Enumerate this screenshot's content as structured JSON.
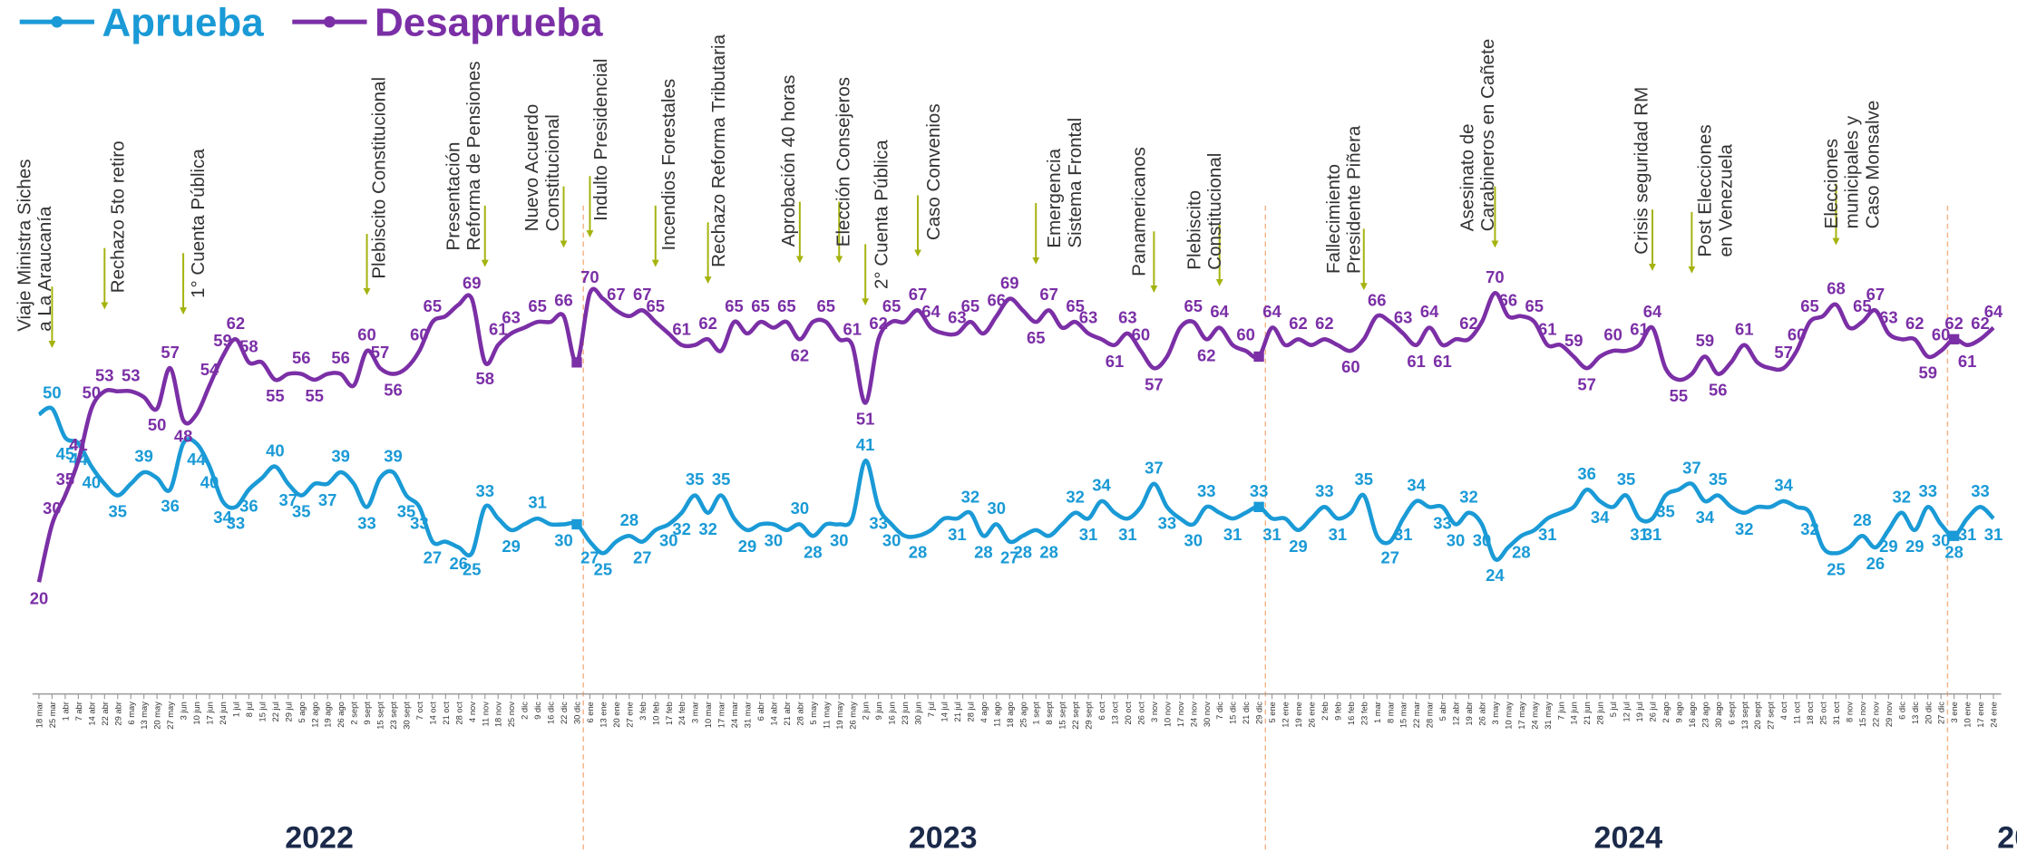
{
  "chart_data": {
    "type": "line",
    "categories": [
      "18 mar",
      "25 mar",
      "1 abr",
      "7 abr",
      "14 abr",
      "22 abr",
      "29 abr",
      "6 may",
      "13 may",
      "20 may",
      "27 may",
      "3 jun",
      "10 jun",
      "17 jun",
      "24 jun",
      "1 jul",
      "8 jul",
      "15 jul",
      "22 jul",
      "29 jul",
      "5 ago",
      "12 ago",
      "19 ago",
      "26 ago",
      "2 sept",
      "9 sept",
      "15 sept",
      "23 sept",
      "30 sept",
      "7 oct",
      "14 oct",
      "21 oct",
      "28 oct",
      "4 nov",
      "11 nov",
      "18 nov",
      "25 nov",
      "2 dic",
      "9 dic",
      "16 dic",
      "22 dic",
      "30 dic",
      "6 ene",
      "13 ene",
      "20 ene",
      "27 ene",
      "3 feb",
      "10 feb",
      "17 feb",
      "24 feb",
      "3 mar",
      "10 mar",
      "17 mar",
      "24 mar",
      "31 mar",
      "6 abr",
      "14 abr",
      "21 abr",
      "28 abr",
      "5 may",
      "11 may",
      "19 may",
      "26 may",
      "2 jun",
      "9 jun",
      "16 jun",
      "23 jun",
      "30 jun",
      "7 jul",
      "14 jul",
      "21 jul",
      "28 jul",
      "4 ago",
      "11 ago",
      "18 ago",
      "25 ago",
      "1 sept",
      "8 sept",
      "15 sept",
      "22 sept",
      "29 sept",
      "6 oct",
      "13 oct",
      "20 oct",
      "26 oct",
      "3 nov",
      "10 nov",
      "17 nov",
      "24 nov",
      "30 nov",
      "7 dic",
      "15 dic",
      "21 dic",
      "29 dic",
      "5 ene",
      "12 ene",
      "19 ene",
      "26 ene",
      "2 feb",
      "9 feb",
      "16 feb",
      "23 feb",
      "1 mar",
      "8 mar",
      "15 mar",
      "22 mar",
      "28 mar",
      "5 abr",
      "12 abr",
      "19 abr",
      "26 abr",
      "3 may",
      "10 may",
      "17 may",
      "24 may",
      "31 may",
      "7 jun",
      "14 jun",
      "21 jun",
      "28 jun",
      "5 jul",
      "12 jul",
      "19 jul",
      "26 jul",
      "2 ago",
      "9 ago",
      "16 ago",
      "23 ago",
      "30 ago",
      "6 sept",
      "13 sept",
      "20 sept",
      "27 sept",
      "4 oct",
      "11 oct",
      "18 oct",
      "25 oct",
      "31 oct",
      "8 nov",
      "15 nov",
      "22 nov",
      "29 nov",
      "6 dic",
      "13 dic",
      "20 dic",
      "27 dic",
      "3 ene",
      "10 ene",
      "17 ene",
      "24 ene"
    ],
    "series": [
      {
        "name": "Aprueba",
        "color": "#1a9ad6",
        "values": [
          49,
          50,
          45,
          44,
          40,
          37,
          35,
          37,
          39,
          38,
          36,
          44,
          44,
          40,
          34,
          33,
          36,
          38,
          40,
          37,
          35,
          37,
          37,
          39,
          37,
          33,
          38,
          39,
          35,
          33,
          27,
          27,
          26,
          25,
          33,
          31,
          29,
          30,
          31,
          30,
          30,
          30,
          27,
          25,
          27,
          28,
          27,
          29,
          30,
          32,
          35,
          32,
          35,
          31,
          29,
          30,
          30,
          29,
          30,
          28,
          30,
          30,
          31,
          41,
          33,
          30,
          28,
          28,
          29,
          31,
          31,
          32,
          28,
          30,
          27,
          28,
          29,
          28,
          30,
          32,
          31,
          34,
          32,
          31,
          33,
          37,
          33,
          31,
          30,
          33,
          32,
          31,
          32,
          33,
          31,
          31,
          29,
          31,
          33,
          31,
          32,
          35,
          28,
          27,
          31,
          34,
          33,
          33,
          30,
          32,
          30,
          24,
          26,
          28,
          29,
          31,
          32,
          33,
          36,
          34,
          33,
          35,
          31,
          31,
          35,
          36,
          37,
          34,
          35,
          33,
          32,
          33,
          33,
          34,
          33,
          32,
          26,
          25,
          26,
          28,
          26,
          29,
          32,
          29,
          33,
          30,
          28,
          31,
          33,
          31
        ],
        "value_labels": [
          null,
          50,
          45,
          44,
          40,
          null,
          35,
          null,
          39,
          null,
          36,
          null,
          44,
          40,
          34,
          33,
          36,
          null,
          40,
          37,
          35,
          null,
          37,
          39,
          null,
          33,
          null,
          39,
          35,
          33,
          27,
          null,
          26,
          25,
          33,
          null,
          29,
          null,
          31,
          null,
          30,
          null,
          27,
          25,
          null,
          28,
          27,
          null,
          30,
          32,
          35,
          32,
          35,
          null,
          29,
          null,
          30,
          null,
          30,
          28,
          null,
          30,
          null,
          41,
          33,
          30,
          null,
          28,
          null,
          null,
          31,
          32,
          28,
          30,
          27,
          28,
          null,
          28,
          null,
          32,
          31,
          34,
          null,
          31,
          null,
          37,
          33,
          null,
          30,
          33,
          null,
          31,
          null,
          33,
          31,
          null,
          29,
          null,
          33,
          31,
          null,
          35,
          null,
          27,
          31,
          34,
          null,
          33,
          30,
          32,
          30,
          24,
          null,
          28,
          null,
          31,
          null,
          null,
          36,
          34,
          null,
          35,
          31,
          31,
          35,
          null,
          37,
          34,
          35,
          null,
          32,
          null,
          null,
          34,
          null,
          32,
          null,
          25,
          null,
          28,
          26,
          29,
          32,
          29,
          33,
          30,
          28,
          31,
          33,
          31
        ]
      },
      {
        "name": "Desaprueba",
        "color": "#7b2fa6",
        "values": [
          20,
          30,
          35,
          41,
          50,
          53,
          53,
          53,
          52,
          50,
          57,
          48,
          49,
          54,
          59,
          62,
          58,
          58,
          55,
          56,
          56,
          55,
          56,
          56,
          54,
          60,
          57,
          56,
          57,
          60,
          65,
          66,
          68,
          69,
          58,
          61,
          63,
          64,
          65,
          65,
          66,
          58,
          70,
          69,
          67,
          66,
          67,
          65,
          63,
          61,
          61,
          62,
          60,
          65,
          63,
          65,
          64,
          65,
          62,
          65,
          65,
          62,
          61,
          51,
          62,
          65,
          65,
          67,
          64,
          63,
          63,
          65,
          63,
          66,
          69,
          67,
          65,
          67,
          64,
          65,
          63,
          62,
          61,
          63,
          60,
          57,
          59,
          64,
          65,
          62,
          64,
          61,
          60,
          59,
          64,
          61,
          62,
          61,
          62,
          61,
          60,
          62,
          66,
          65,
          63,
          61,
          64,
          61,
          62,
          62,
          65,
          70,
          66,
          66,
          65,
          61,
          61,
          59,
          57,
          59,
          60,
          60,
          61,
          64,
          57,
          55,
          56,
          59,
          56,
          58,
          61,
          58,
          57,
          57,
          60,
          65,
          66,
          68,
          64,
          65,
          67,
          63,
          62,
          62,
          59,
          60,
          62,
          61,
          62,
          64
        ],
        "value_labels": [
          20,
          30,
          35,
          41,
          50,
          53,
          null,
          53,
          null,
          50,
          57,
          48,
          null,
          54,
          59,
          62,
          58,
          null,
          55,
          null,
          56,
          55,
          null,
          56,
          null,
          60,
          57,
          56,
          null,
          60,
          65,
          null,
          null,
          69,
          58,
          61,
          63,
          null,
          65,
          null,
          66,
          null,
          70,
          null,
          67,
          null,
          67,
          65,
          null,
          61,
          null,
          62,
          null,
          65,
          null,
          65,
          null,
          65,
          62,
          null,
          65,
          null,
          61,
          51,
          62,
          65,
          null,
          67,
          64,
          null,
          63,
          65,
          null,
          66,
          69,
          null,
          65,
          67,
          null,
          65,
          63,
          null,
          61,
          63,
          60,
          57,
          null,
          null,
          65,
          62,
          64,
          null,
          60,
          null,
          64,
          null,
          62,
          null,
          62,
          null,
          60,
          null,
          66,
          null,
          63,
          61,
          64,
          61,
          null,
          62,
          null,
          70,
          66,
          null,
          65,
          61,
          null,
          59,
          57,
          null,
          60,
          null,
          61,
          64,
          null,
          55,
          null,
          59,
          56,
          null,
          61,
          null,
          null,
          57,
          60,
          65,
          null,
          68,
          null,
          65,
          67,
          63,
          null,
          62,
          59,
          60,
          62,
          61,
          62,
          64
        ]
      }
    ],
    "ylim": [
      0,
      120
    ],
    "years": [
      "2022",
      "2023",
      "2024",
      "20"
    ],
    "annotations": [
      {
        "text": [
          "Viaje Ministra Siches",
          "a La Araucanía"
        ]
      },
      {
        "text": [
          "Rechazo 5to retiro"
        ]
      },
      {
        "text": [
          "1° Cuenta Pública"
        ]
      },
      {
        "text": [
          "Plebiscito Constitucional"
        ]
      },
      {
        "text": [
          "Presentación",
          "Reforma de Pensiones"
        ]
      },
      {
        "text": [
          "Nuevo Acuerdo",
          "Constitucional"
        ]
      },
      {
        "text": [
          "Indulto Presidencial"
        ]
      },
      {
        "text": [
          "Incendios Forestales"
        ]
      },
      {
        "text": [
          "Rechazo Reforma Tributaria"
        ]
      },
      {
        "text": [
          "Aprobación 40 horas"
        ]
      },
      {
        "text": [
          "Elección Consejeros"
        ]
      },
      {
        "text": [
          "2° Cuenta Pública"
        ]
      },
      {
        "text": [
          "Caso Convenios"
        ]
      },
      {
        "text": [
          "Emergencia",
          "Sistema Frontal"
        ]
      },
      {
        "text": [
          "Panamericanos"
        ]
      },
      {
        "text": [
          "Plebiscito",
          "Constitucional"
        ]
      },
      {
        "text": [
          "Fallecimiento",
          "Presidente Piñera"
        ]
      },
      {
        "text": [
          "Asesinato de",
          "Carabineros en Cañete"
        ]
      },
      {
        "text": [
          "Crisis seguridad RM"
        ]
      },
      {
        "text": [
          "Post Elecciones",
          "en Venezuela"
        ]
      },
      {
        "text": [
          "Elecciones",
          "municipales y",
          "Caso Monsalve"
        ]
      }
    ]
  }
}
